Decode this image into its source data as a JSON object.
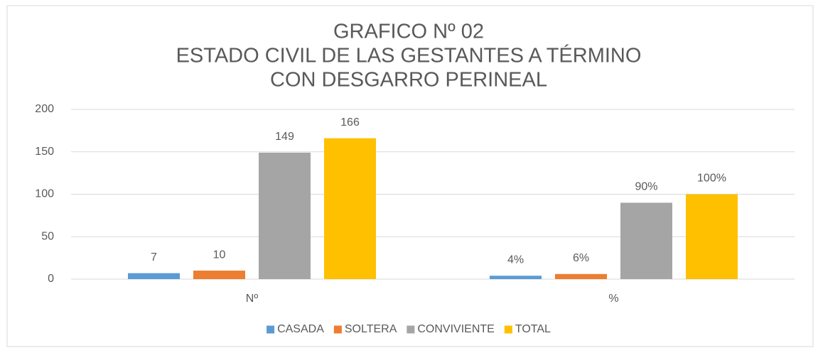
{
  "chart_data": {
    "type": "bar",
    "title": [
      "GRAFICO Nº 02",
      "ESTADO CIVIL DE LAS GESTANTES A TÉRMINO",
      "CON DESGARRO PERINEAL"
    ],
    "categories": [
      "Nº",
      "%"
    ],
    "series": [
      {
        "name": "CASADA",
        "color": "#5b9bd5",
        "values": [
          7,
          4
        ],
        "value_labels": [
          "7",
          "4%"
        ]
      },
      {
        "name": "SOLTERA",
        "color": "#ed7d31",
        "values": [
          10,
          6
        ],
        "value_labels": [
          "10",
          "6%"
        ]
      },
      {
        "name": "CONVIVIENTE",
        "color": "#a5a5a5",
        "values": [
          149,
          90
        ],
        "value_labels": [
          "149",
          "90%"
        ]
      },
      {
        "name": "TOTAL",
        "color": "#ffc000",
        "values": [
          166,
          100
        ],
        "value_labels": [
          "166",
          "100%"
        ]
      }
    ],
    "ylim": [
      0,
      200
    ],
    "yticks": [
      0,
      50,
      100,
      150,
      200
    ],
    "grid": true,
    "legend": "bottom"
  }
}
